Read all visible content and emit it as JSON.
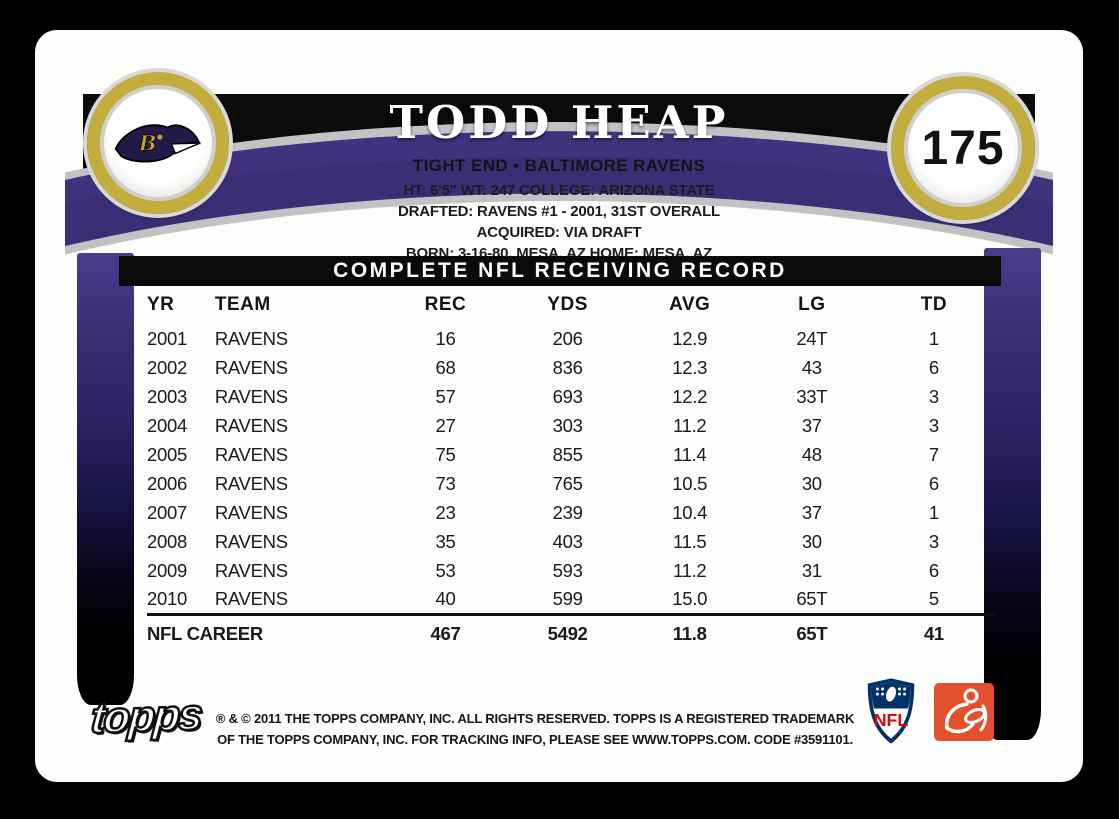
{
  "card": {
    "player_name": "TODD HEAP",
    "card_number": "175",
    "position_team": "TIGHT END • BALTIMORE RAVENS",
    "bio_lines": [
      "HT: 6'5\" WT: 247 COLLEGE: ARIZONA STATE",
      "DRAFTED: RAVENS #1 - 2001, 31ST OVERALL",
      "ACQUIRED: VIA DRAFT",
      "BORN: 3-16-80, MESA, AZ HOME: MESA, AZ"
    ],
    "team_logo_name": "baltimore-ravens-logo"
  },
  "stats": {
    "title": "COMPLETE NFL RECEIVING RECORD",
    "columns": [
      "YR",
      "TEAM",
      "REC",
      "YDS",
      "AVG",
      "LG",
      "TD"
    ],
    "rows": [
      [
        "2001",
        "RAVENS",
        "16",
        "206",
        "12.9",
        "24T",
        "1"
      ],
      [
        "2002",
        "RAVENS",
        "68",
        "836",
        "12.3",
        "43",
        "6"
      ],
      [
        "2003",
        "RAVENS",
        "57",
        "693",
        "12.2",
        "33T",
        "3"
      ],
      [
        "2004",
        "RAVENS",
        "27",
        "303",
        "11.2",
        "37",
        "3"
      ],
      [
        "2005",
        "RAVENS",
        "75",
        "855",
        "11.4",
        "48",
        "7"
      ],
      [
        "2006",
        "RAVENS",
        "73",
        "765",
        "10.5",
        "30",
        "6"
      ],
      [
        "2007",
        "RAVENS",
        "23",
        "239",
        "10.4",
        "37",
        "1"
      ],
      [
        "2008",
        "RAVENS",
        "35",
        "403",
        "11.5",
        "30",
        "3"
      ],
      [
        "2009",
        "RAVENS",
        "53",
        "593",
        "11.2",
        "31",
        "6"
      ],
      [
        "2010",
        "RAVENS",
        "40",
        "599",
        "15.0",
        "65T",
        "5"
      ]
    ],
    "career_label": "NFL CAREER",
    "career_values": [
      "467",
      "5492",
      "11.8",
      "65T",
      "41"
    ]
  },
  "footer": {
    "topps_logo_text": "topps",
    "copyright_line1": "® & © 2011 THE TOPPS COMPANY, INC. ALL RIGHTS RESERVED. TOPPS IS A REGISTERED TRADEMARK",
    "copyright_line2": "OF THE TOPPS COMPANY, INC. FOR TRACKING INFO, PLEASE SEE WWW.TOPPS.COM. CODE #3591101.",
    "nfl_logo_text": "NFL"
  },
  "colors": {
    "band_purple": "#3b2e74",
    "ring_gold": "#c2ad3e",
    "silver_trim": "#c2c2c4",
    "nfl_blue": "#013369",
    "nfl_red": "#d50a0a",
    "nflpa_orange": "#e2512b"
  }
}
